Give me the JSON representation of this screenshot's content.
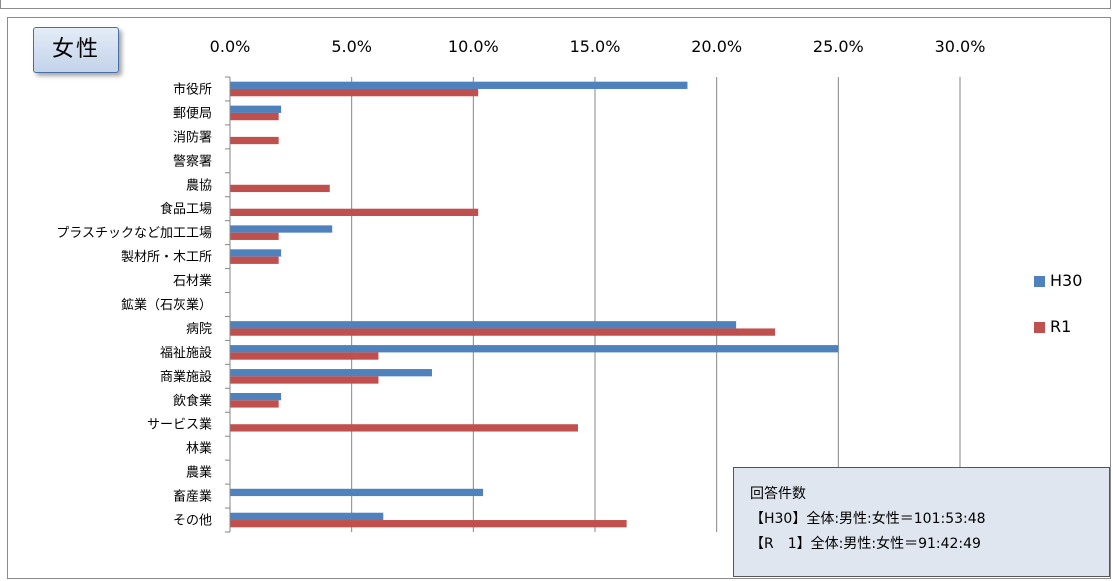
{
  "badge_title": "女性",
  "colors": {
    "H30": "#4f81bd",
    "R1": "#c0504d",
    "grid": "#868686"
  },
  "chart_data": {
    "type": "bar",
    "orientation": "horizontal",
    "categories": [
      "市役所",
      "郵便局",
      "消防署",
      "警察署",
      "農協",
      "食品工場",
      "プラスチックなど加工工場",
      "製材所・木工所",
      "石材業",
      "鉱業（石灰業）",
      "病院",
      "福祉施設",
      "商業施設",
      "飲食業",
      "サービス業",
      "林業",
      "農業",
      "畜産業",
      "その他"
    ],
    "series": [
      {
        "name": "H30",
        "values": [
          18.8,
          2.1,
          0,
          0,
          0,
          0,
          4.2,
          2.1,
          0,
          0,
          20.8,
          25.0,
          8.3,
          2.1,
          0,
          0,
          0,
          10.4,
          6.3
        ]
      },
      {
        "name": "R1",
        "values": [
          10.2,
          2.0,
          2.0,
          0,
          4.1,
          10.2,
          2.0,
          2.0,
          0,
          0,
          22.4,
          6.1,
          6.1,
          2.0,
          14.3,
          0,
          0,
          0,
          16.3
        ]
      }
    ],
    "xlim": [
      0,
      30
    ],
    "x_ticks": [
      "0.0%",
      "5.0%",
      "10.0%",
      "15.0%",
      "20.0%",
      "25.0%",
      "30.0%"
    ],
    "grid": true,
    "legend_position": "right"
  },
  "note": {
    "title": "回答件数",
    "lines": [
      "【H30】全体:男性:女性＝101:53:48",
      "【R　1】全体:男性:女性＝91:42:49"
    ]
  }
}
